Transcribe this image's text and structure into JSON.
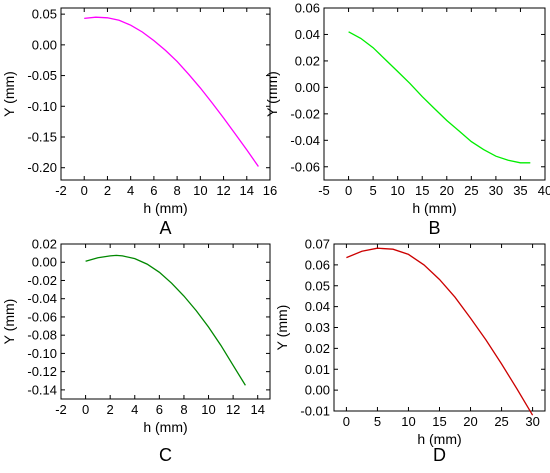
{
  "chart_data": [
    {
      "type": "line",
      "panel_label": "A",
      "xlabel": "h (mm)",
      "ylabel": "Y (mm)",
      "xlim": [
        -2,
        16
      ],
      "ylim": [
        -0.22,
        0.06
      ],
      "xticks": [
        -2,
        0,
        2,
        4,
        6,
        8,
        10,
        12,
        14,
        16
      ],
      "yticks": [
        -0.2,
        -0.15,
        -0.1,
        -0.05,
        0.0,
        0.05
      ],
      "xtick_labels": [
        "-2",
        "0",
        "2",
        "4",
        "6",
        "8",
        "10",
        "12",
        "14",
        "16"
      ],
      "ytick_labels": [
        "-0.20",
        "-0.15",
        "-0.10",
        "-0.05",
        "0.00",
        "0.05"
      ],
      "grid": false,
      "color": "#ff00ff",
      "x": [
        0,
        1,
        2,
        3,
        4,
        5,
        6,
        7,
        8,
        9,
        10,
        11,
        12,
        13,
        14,
        15
      ],
      "y": [
        0.043,
        0.045,
        0.044,
        0.04,
        0.032,
        0.021,
        0.007,
        -0.009,
        -0.027,
        -0.048,
        -0.07,
        -0.094,
        -0.119,
        -0.145,
        -0.171,
        -0.198
      ]
    },
    {
      "type": "line",
      "panel_label": "B",
      "xlabel": "h (mm)",
      "ylabel": "Y (mm)",
      "xlim": [
        -5,
        40
      ],
      "ylim": [
        -0.07,
        0.06
      ],
      "xticks": [
        -5,
        0,
        5,
        10,
        15,
        20,
        25,
        30,
        35,
        40
      ],
      "yticks": [
        -0.06,
        -0.04,
        -0.02,
        0.0,
        0.02,
        0.04,
        0.06
      ],
      "xtick_labels": [
        "-5",
        "0",
        "5",
        "10",
        "15",
        "20",
        "25",
        "30",
        "35",
        "40"
      ],
      "ytick_labels": [
        "-0.06",
        "-0.04",
        "-0.02",
        "0.00",
        "0.02",
        "0.04",
        "0.06"
      ],
      "grid": false,
      "color": "#00ee00",
      "x": [
        0,
        2.5,
        5,
        7.5,
        10,
        12.5,
        15,
        17.5,
        20,
        22.5,
        25,
        27.5,
        30,
        32.5,
        35,
        37
      ],
      "y": [
        0.042,
        0.037,
        0.03,
        0.021,
        0.012,
        0.003,
        -0.007,
        -0.016,
        -0.025,
        -0.033,
        -0.041,
        -0.047,
        -0.052,
        -0.055,
        -0.057,
        -0.057
      ]
    },
    {
      "type": "line",
      "panel_label": "C",
      "xlabel": "h (mm)",
      "ylabel": "Y (mm)",
      "xlim": [
        -2,
        15
      ],
      "ylim": [
        -0.15,
        0.02
      ],
      "xticks": [
        -2,
        0,
        2,
        4,
        6,
        8,
        10,
        12,
        14
      ],
      "yticks": [
        -0.14,
        -0.12,
        -0.1,
        -0.08,
        -0.06,
        -0.04,
        -0.02,
        0.0,
        0.02
      ],
      "xtick_labels": [
        "-2",
        "0",
        "2",
        "4",
        "6",
        "8",
        "10",
        "12",
        "14"
      ],
      "ytick_labels": [
        "-0.14",
        "-0.12",
        "-0.10",
        "-0.08",
        "-0.06",
        "-0.04",
        "-0.02",
        "0.00",
        "0.02"
      ],
      "grid": false,
      "color": "#008800",
      "x": [
        0,
        1,
        2,
        2.5,
        3,
        4,
        5,
        6,
        7,
        8,
        9,
        10,
        11,
        12,
        13
      ],
      "y": [
        0.001,
        0.005,
        0.007,
        0.0075,
        0.007,
        0.004,
        -0.002,
        -0.011,
        -0.023,
        -0.037,
        -0.053,
        -0.071,
        -0.091,
        -0.113,
        -0.135
      ]
    },
    {
      "type": "line",
      "panel_label": "D",
      "xlabel": "h (mm)",
      "ylabel": "Y (mm)",
      "xlim": [
        -2,
        32
      ],
      "ylim": [
        -0.01,
        0.07
      ],
      "xticks": [
        0,
        5,
        10,
        15,
        20,
        25,
        30
      ],
      "yticks": [
        -0.01,
        0.0,
        0.01,
        0.02,
        0.03,
        0.04,
        0.05,
        0.06,
        0.07
      ],
      "xtick_labels": [
        "0",
        "5",
        "10",
        "15",
        "20",
        "25",
        "30"
      ],
      "ytick_labels": [
        "-0.01",
        "0.00",
        "0.01",
        "0.02",
        "0.03",
        "0.04",
        "0.05",
        "0.06",
        "0.07"
      ],
      "grid": false,
      "color": "#cc0000",
      "x": [
        0,
        2.5,
        5,
        7.5,
        10,
        12.5,
        15,
        17.5,
        20,
        22.5,
        25,
        27.5,
        30
      ],
      "y": [
        0.0635,
        0.0665,
        0.068,
        0.0675,
        0.065,
        0.06,
        0.053,
        0.0445,
        0.0345,
        0.024,
        0.0125,
        0.0005,
        -0.012
      ]
    }
  ]
}
